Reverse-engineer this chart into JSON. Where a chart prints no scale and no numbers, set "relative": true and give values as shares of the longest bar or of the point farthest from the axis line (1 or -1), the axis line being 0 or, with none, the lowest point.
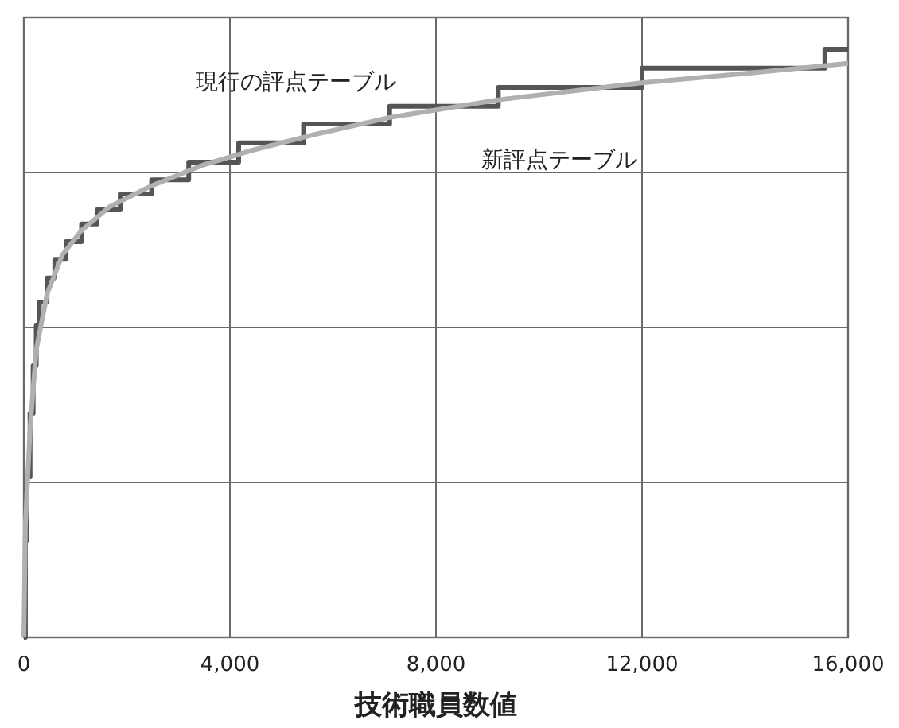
{
  "chart_data": {
    "type": "line",
    "xlabel": "技術職員数値",
    "relative": true,
    "xlim": [
      0,
      16000
    ],
    "xticks": [
      0,
      {
        "value": 4000,
        "label": "4,000"
      },
      {
        "value": 8000,
        "label": "8,000"
      },
      {
        "value": 12000,
        "label": "12,000"
      },
      {
        "value": 16000,
        "label": "16,000"
      }
    ],
    "grid": true,
    "marker": "none",
    "line_style": "solid",
    "series": [
      {
        "name": "現行の評点テーブル",
        "type": "step",
        "color": "#555555",
        "x": [
          0,
          30,
          60,
          120,
          180,
          240,
          300,
          450,
          600,
          820,
          1120,
          1420,
          1870,
          2480,
          3200,
          4170,
          5430,
          7100,
          9210,
          12000,
          15550,
          16000
        ],
        "values": [
          0,
          0.165,
          0.273,
          0.381,
          0.462,
          0.53,
          0.57,
          0.611,
          0.643,
          0.673,
          0.703,
          0.727,
          0.754,
          0.778,
          0.808,
          0.841,
          0.873,
          0.903,
          0.935,
          0.968,
          1,
          1
        ]
      },
      {
        "name": "新評点テーブル",
        "color": "#b0b0b0",
        "x": [
          0,
          30,
          120,
          240,
          450,
          750,
          1120,
          1660,
          2480,
          3470,
          4380,
          5590,
          7100,
          9210,
          11990,
          14040,
          16000
        ],
        "values": [
          0,
          0.192,
          0.354,
          0.489,
          0.584,
          0.651,
          0.692,
          0.732,
          0.768,
          0.803,
          0.827,
          0.854,
          0.884,
          0.914,
          0.943,
          0.959,
          0.976
        ]
      }
    ]
  }
}
